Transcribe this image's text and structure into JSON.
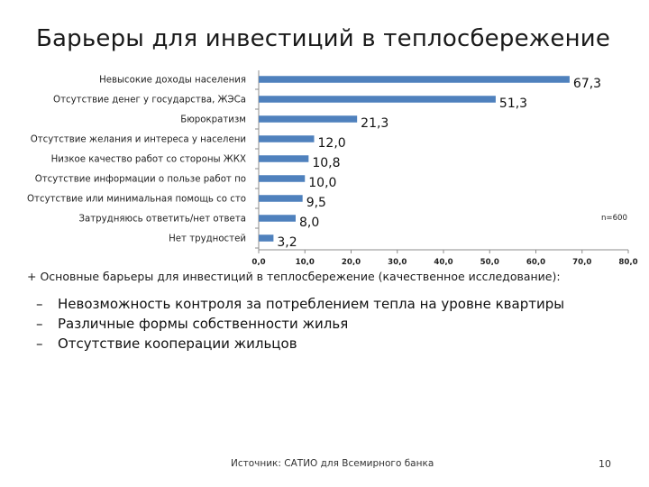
{
  "title": "Барьеры для инвестиций в теплосбережение",
  "chart_data": {
    "type": "bar",
    "orientation": "horizontal",
    "categories": [
      "Невысокие доходы населения",
      "Отсутствие денег у государства, ЖЭСа",
      "Бюрократизм",
      "Отсутствие желания и интереса у населени",
      "Низкое качество работ со стороны ЖКХ",
      "Отсутствие информации о пользе работ по",
      "Отсутствие или минимальная помощь со сто",
      "Затрудняюсь ответить/нет ответа",
      "Нет трудностей"
    ],
    "values": [
      67.3,
      51.3,
      21.3,
      12.0,
      10.8,
      10.0,
      9.5,
      8.0,
      3.2
    ],
    "value_labels": [
      "67,3",
      "51,3",
      "21,3",
      "12,0",
      "10,8",
      "10,0",
      "9,5",
      "8,0",
      "3,2"
    ],
    "xlim": [
      0,
      80
    ],
    "ticks": [
      "0,0",
      "10,0",
      "20,0",
      "30,0",
      "40,0",
      "50,0",
      "60,0",
      "70,0",
      "80,0"
    ],
    "bar_color": "#4f81bd",
    "annotation": "n=600",
    "grid": false
  },
  "caption": "+ Основные барьеры для инвестиций в теплосбережение (качественное исследование):",
  "bullets": [
    "Невозможность контроля за потреблением тепла на уровне квартиры",
    "Различные формы собственности жилья",
    "Отсутствие кооперации жильцов"
  ],
  "bullet_marker": "–",
  "footer": {
    "source": "Источник: САТИО для Всемирного банка",
    "page": "10"
  }
}
